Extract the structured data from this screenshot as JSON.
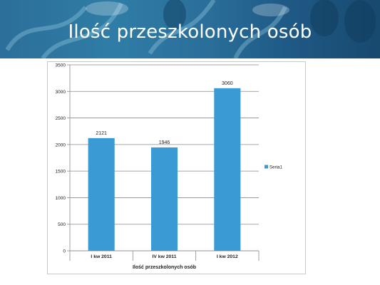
{
  "slide": {
    "title": "Ilość przeszkolonych osób"
  },
  "colors": {
    "bar": "#3a9ad4",
    "banner": "#2b6f9a",
    "grid": "#8a8a8a"
  },
  "chart_data": {
    "type": "bar",
    "categories": [
      "I kw 2011",
      "IV kw 2011",
      "I kw 2012"
    ],
    "series": [
      {
        "name": "Seria1",
        "values": [
          2121,
          1946,
          3060
        ]
      }
    ],
    "data_labels": [
      "2121",
      "1946",
      "3060"
    ],
    "xlabel": "Ilość przeszkolonych osób",
    "ylabel": "",
    "ylim": [
      0,
      3500
    ],
    "yticks": [
      0,
      500,
      1000,
      1500,
      2000,
      2500,
      3000,
      3500
    ],
    "ytick_labels": [
      "0",
      "500",
      "1000",
      "1500",
      "2000",
      "2500",
      "3000",
      "3500"
    ],
    "grid": true,
    "legend": {
      "position": "right",
      "entries": [
        "Seria1"
      ]
    }
  }
}
